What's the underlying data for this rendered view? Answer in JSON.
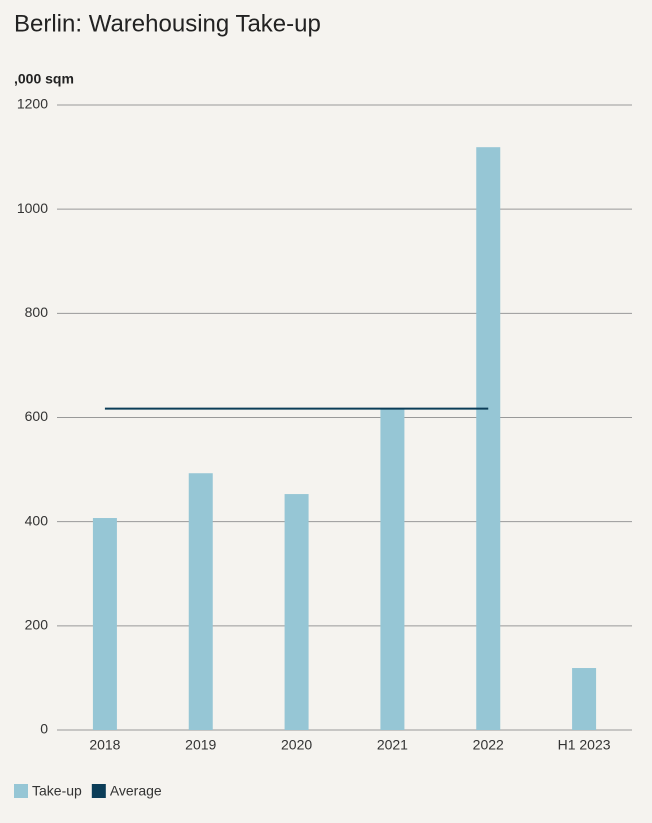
{
  "chart_data": {
    "type": "bar",
    "title": "Berlin: Warehousing Take-up",
    "y_label": ",000 sqm",
    "categories": [
      "2018",
      "2019",
      "2020",
      "2021",
      "2022",
      "H1 2023"
    ],
    "series": [
      {
        "name": "Take-up",
        "type": "bar",
        "color": "#96c6d5",
        "values": [
          407,
          493,
          453,
          618,
          1119,
          119
        ]
      },
      {
        "name": "Average",
        "type": "line",
        "color": "#0b3d58",
        "values": [
          617,
          617,
          617,
          617,
          617,
          null
        ]
      }
    ],
    "ylim": [
      0,
      1200
    ],
    "yticks": [
      0,
      200,
      400,
      600,
      800,
      1000,
      1200
    ],
    "grid": true,
    "legend": "bottom-left"
  }
}
